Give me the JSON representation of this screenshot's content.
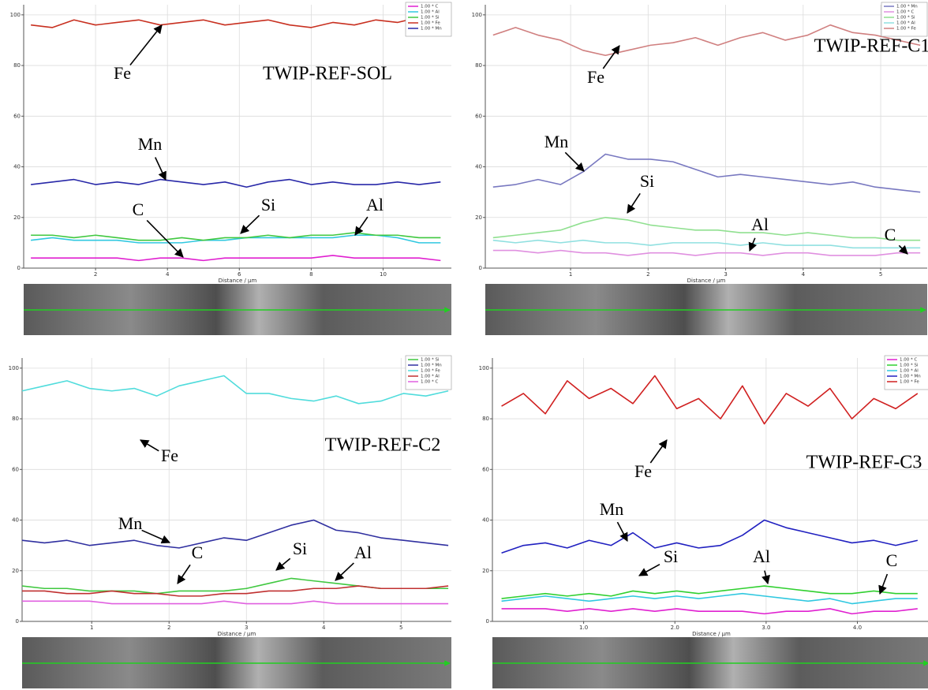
{
  "chart_data": [
    {
      "type": "line",
      "label": "TWIP-REF-SOL",
      "x_label": "Distance / μm",
      "annotations": [
        "Fe",
        "Mn",
        "C",
        "Si",
        "Al"
      ],
      "x": [
        0.2,
        0.8,
        1.4,
        2,
        2.6,
        3.2,
        3.8,
        4.4,
        5,
        5.6,
        6.2,
        6.8,
        7.4,
        8,
        8.6,
        9.2,
        9.8,
        10.4,
        11,
        11.6
      ],
      "xlim": [
        0,
        11.9
      ],
      "xticks": [
        2,
        4,
        6,
        8,
        10
      ],
      "ylim": [
        0,
        104
      ],
      "yticks": [
        0,
        20,
        40,
        60,
        80,
        100
      ],
      "grid": true,
      "series": [
        {
          "name": "1.00 * C",
          "color": "#e020d0",
          "values": [
            4,
            4,
            4,
            4,
            4,
            3,
            4,
            4,
            3,
            4,
            4,
            4,
            4,
            4,
            5,
            4,
            4,
            4,
            4,
            3
          ]
        },
        {
          "name": "1.00 * Al",
          "color": "#30c8e0",
          "values": [
            11,
            12,
            11,
            11,
            11,
            10,
            10,
            10,
            11,
            11,
            12,
            12,
            12,
            12,
            12,
            13,
            13,
            12,
            10,
            10
          ]
        },
        {
          "name": "1.00 * Si",
          "color": "#40c840",
          "values": [
            13,
            13,
            12,
            13,
            12,
            11,
            11,
            12,
            11,
            12,
            12,
            13,
            12,
            13,
            13,
            14,
            13,
            13,
            12,
            12
          ]
        },
        {
          "name": "1.00 * Fe",
          "color": "#c83020",
          "values": [
            96,
            95,
            98,
            96,
            97,
            98,
            96,
            97,
            98,
            96,
            97,
            98,
            96,
            95,
            97,
            96,
            98,
            97,
            99,
            96
          ]
        },
        {
          "name": "1.00 * Mn",
          "color": "#2828a8",
          "values": [
            33,
            34,
            35,
            33,
            34,
            33,
            35,
            34,
            33,
            34,
            32,
            34,
            35,
            33,
            34,
            33,
            33,
            34,
            33,
            34
          ]
        }
      ]
    },
    {
      "type": "line",
      "label": "TWIP-REF-C1",
      "x_label": "Distance / μm",
      "annotations": [
        "Fe",
        "Mn",
        "Si",
        "Al",
        "C"
      ],
      "x": [
        0,
        0.29,
        0.58,
        0.87,
        1.16,
        1.45,
        1.74,
        2.03,
        2.32,
        2.61,
        2.9,
        3.19,
        3.48,
        3.77,
        4.06,
        4.35,
        4.64,
        4.93,
        5.22,
        5.51
      ],
      "xlim": [
        -0.1,
        5.6
      ],
      "xticks": [
        1,
        2,
        3,
        4,
        5
      ],
      "ylim": [
        0,
        104
      ],
      "yticks": [
        0,
        20,
        40,
        60,
        80,
        100
      ],
      "grid": true,
      "series": [
        {
          "name": "1.00 * Mn",
          "color": "#7878c0",
          "values": [
            32,
            33,
            35,
            33,
            38,
            45,
            43,
            43,
            42,
            39,
            36,
            37,
            36,
            35,
            34,
            33,
            34,
            32,
            31,
            30
          ]
        },
        {
          "name": "1.00 * C",
          "color": "#e090e0",
          "values": [
            7,
            7,
            6,
            7,
            6,
            6,
            5,
            6,
            6,
            5,
            6,
            6,
            5,
            6,
            6,
            5,
            5,
            5,
            6,
            6
          ]
        },
        {
          "name": "1.00 * Si",
          "color": "#90e090",
          "values": [
            12,
            13,
            14,
            15,
            18,
            20,
            19,
            17,
            16,
            15,
            15,
            14,
            14,
            13,
            14,
            13,
            12,
            12,
            11,
            11
          ]
        },
        {
          "name": "1.00 * Al",
          "color": "#90e0e0",
          "values": [
            11,
            10,
            11,
            10,
            11,
            10,
            10,
            9,
            10,
            10,
            10,
            9,
            10,
            9,
            9,
            9,
            8,
            8,
            8,
            8
          ]
        },
        {
          "name": "1.00 * Fe",
          "color": "#d08080",
          "values": [
            92,
            95,
            92,
            90,
            86,
            84,
            86,
            88,
            89,
            91,
            88,
            91,
            93,
            90,
            92,
            96,
            93,
            92,
            90,
            88
          ]
        }
      ]
    },
    {
      "type": "line",
      "label": "TWIP-REF-C2",
      "x_label": "Distance / μm",
      "annotations": [
        "Fe",
        "Mn",
        "C",
        "Si",
        "Al"
      ],
      "x": [
        0.1,
        0.39,
        0.68,
        0.97,
        1.26,
        1.55,
        1.84,
        2.13,
        2.42,
        2.71,
        3,
        3.29,
        3.58,
        3.87,
        4.16,
        4.45,
        4.74,
        5.03,
        5.32,
        5.61
      ],
      "xlim": [
        0.1,
        5.65
      ],
      "xticks": [
        1,
        2,
        3,
        4,
        5
      ],
      "ylim": [
        0,
        104
      ],
      "yticks": [
        0,
        20,
        40,
        60,
        80,
        100
      ],
      "grid": true,
      "series": [
        {
          "name": "1.00 * Si",
          "color": "#40c840",
          "values": [
            14,
            13,
            13,
            12,
            12,
            12,
            11,
            12,
            12,
            12,
            13,
            15,
            17,
            16,
            15,
            14,
            13,
            13,
            13,
            13
          ]
        },
        {
          "name": "1.00 * Mn",
          "color": "#3030a0",
          "values": [
            32,
            31,
            32,
            30,
            31,
            32,
            30,
            29,
            31,
            33,
            32,
            35,
            38,
            40,
            36,
            35,
            33,
            32,
            31,
            30
          ]
        },
        {
          "name": "1.00 * Fe",
          "color": "#50dcdc",
          "values": [
            91,
            93,
            95,
            92,
            91,
            92,
            89,
            93,
            95,
            97,
            90,
            90,
            88,
            87,
            89,
            86,
            87,
            90,
            89,
            91
          ]
        },
        {
          "name": "1.00 * Al",
          "color": "#c03030",
          "values": [
            12,
            12,
            11,
            11,
            12,
            11,
            11,
            10,
            10,
            11,
            11,
            12,
            12,
            13,
            13,
            14,
            13,
            13,
            13,
            14
          ]
        },
        {
          "name": "1.00 * C",
          "color": "#e060e0",
          "values": [
            8,
            8,
            8,
            8,
            7,
            7,
            7,
            7,
            7,
            8,
            7,
            7,
            7,
            8,
            7,
            7,
            7,
            7,
            7,
            7
          ]
        }
      ]
    },
    {
      "type": "line",
      "label": "TWIP-REF-C3",
      "x_label": "Distance / μm",
      "annotations": [
        "Fe",
        "Mn",
        "Si",
        "Al",
        "C"
      ],
      "x": [
        0.1,
        0.34,
        0.58,
        0.82,
        1.06,
        1.3,
        1.54,
        1.78,
        2.02,
        2.26,
        2.5,
        2.74,
        2.98,
        3.22,
        3.46,
        3.7,
        3.94,
        4.18,
        4.42,
        4.66
      ],
      "xlim": [
        0,
        4.8
      ],
      "xticks": [
        {
          "value": 1,
          "label": "1.0"
        },
        {
          "value": 2,
          "label": "2.0"
        },
        {
          "value": 3,
          "label": "3.0"
        },
        {
          "value": 4,
          "label": "4.0"
        }
      ],
      "ylim": [
        0,
        104
      ],
      "yticks": [
        0,
        20,
        40,
        60,
        80,
        100
      ],
      "grid": true,
      "series": [
        {
          "name": "1.00 * C",
          "color": "#e020d0",
          "values": [
            5,
            5,
            5,
            4,
            5,
            4,
            5,
            4,
            5,
            4,
            4,
            4,
            3,
            4,
            4,
            5,
            3,
            4,
            4,
            5
          ]
        },
        {
          "name": "1.00 * Si",
          "color": "#30d030",
          "values": [
            9,
            10,
            11,
            10,
            11,
            10,
            12,
            11,
            12,
            11,
            12,
            13,
            14,
            13,
            12,
            11,
            11,
            12,
            11,
            11
          ]
        },
        {
          "name": "1.00 * Al",
          "color": "#30c8e0",
          "values": [
            8,
            9,
            10,
            9,
            8,
            9,
            10,
            9,
            10,
            9,
            10,
            11,
            10,
            9,
            8,
            9,
            7,
            8,
            9,
            9
          ]
        },
        {
          "name": "1.00 * Mn",
          "color": "#2020c0",
          "values": [
            27,
            30,
            31,
            29,
            32,
            30,
            35,
            29,
            31,
            29,
            30,
            34,
            40,
            37,
            35,
            33,
            31,
            32,
            30,
            32
          ]
        },
        {
          "name": "1.00 * Fe",
          "color": "#d02020",
          "values": [
            85,
            90,
            82,
            95,
            88,
            92,
            86,
            97,
            84,
            88,
            80,
            93,
            78,
            90,
            85,
            92,
            80,
            88,
            84,
            90
          ]
        }
      ]
    }
  ]
}
